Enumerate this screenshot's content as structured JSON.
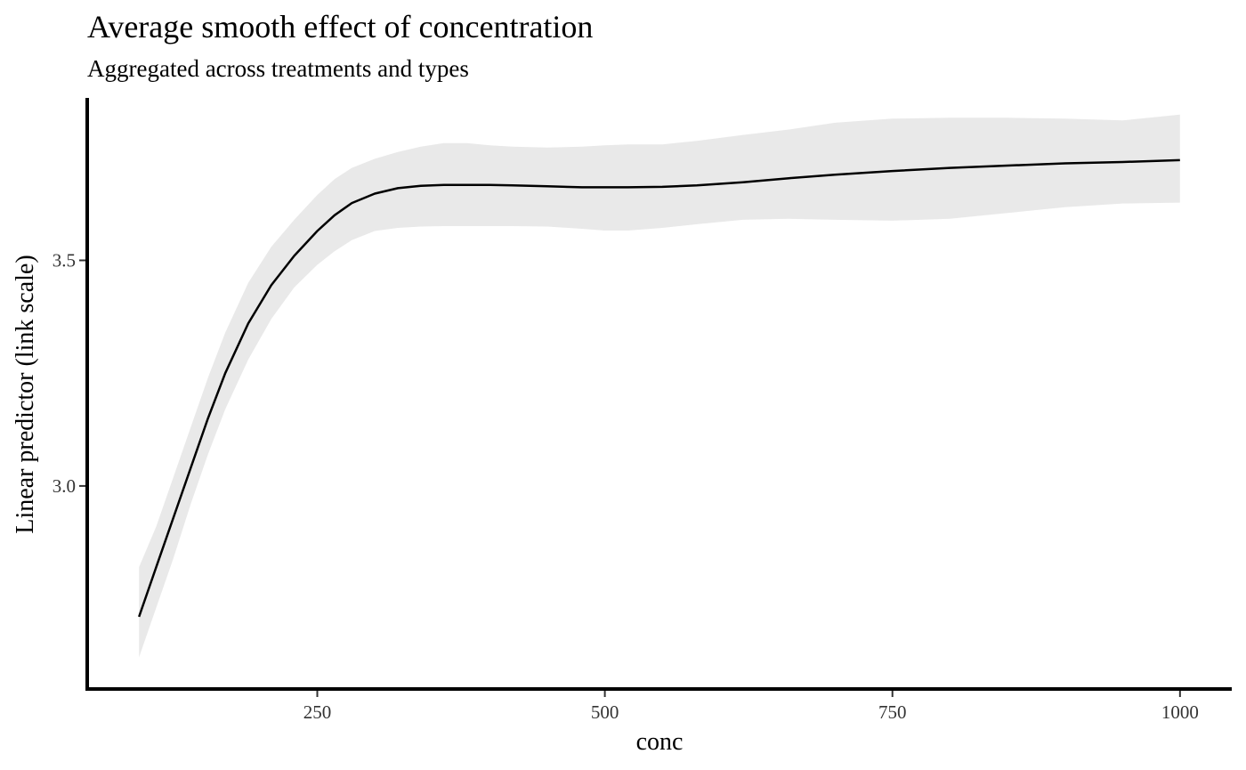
{
  "chart_data": {
    "type": "line",
    "title": "Average smooth effect of concentration",
    "subtitle": "Aggregated across treatments and types",
    "xlabel": "conc",
    "ylabel": "Linear predictor (link scale)",
    "xlim": [
      50,
      1045
    ],
    "ylim": [
      2.55,
      3.86
    ],
    "x_ticks": [
      250,
      500,
      750,
      1000
    ],
    "x_tick_labels": [
      "250",
      "500",
      "750",
      "1000"
    ],
    "y_ticks": [
      3.0,
      3.5
    ],
    "y_tick_labels": [
      "3.0",
      "3.5"
    ],
    "grid": false,
    "legend": "none",
    "colors": {
      "line": "#000000",
      "ribbon": "#e9e9e9",
      "axis": "#000000"
    },
    "series": [
      {
        "x": [
          95,
          110,
          125,
          140,
          155,
          170,
          190,
          210,
          230,
          250,
          265,
          280,
          300,
          320,
          340,
          360,
          380,
          400,
          420,
          450,
          480,
          500,
          520,
          550,
          580,
          620,
          660,
          700,
          750,
          800,
          850,
          900,
          950,
          1000
        ],
        "y": [
          2.71,
          2.82,
          2.93,
          3.04,
          3.15,
          3.25,
          3.36,
          3.445,
          3.51,
          3.565,
          3.6,
          3.627,
          3.648,
          3.66,
          3.665,
          3.667,
          3.667,
          3.667,
          3.666,
          3.664,
          3.662,
          3.662,
          3.662,
          3.663,
          3.666,
          3.673,
          3.682,
          3.69,
          3.698,
          3.705,
          3.71,
          3.715,
          3.718,
          3.722
        ],
        "lower": [
          2.62,
          2.73,
          2.84,
          2.96,
          3.07,
          3.17,
          3.28,
          3.37,
          3.44,
          3.49,
          3.52,
          3.545,
          3.565,
          3.572,
          3.575,
          3.576,
          3.576,
          3.576,
          3.576,
          3.575,
          3.57,
          3.566,
          3.566,
          3.572,
          3.58,
          3.59,
          3.592,
          3.59,
          3.588,
          3.592,
          3.605,
          3.618,
          3.626,
          3.628
        ],
        "upper": [
          2.82,
          2.91,
          3.02,
          3.13,
          3.24,
          3.34,
          3.45,
          3.53,
          3.59,
          3.645,
          3.68,
          3.705,
          3.725,
          3.74,
          3.752,
          3.76,
          3.76,
          3.755,
          3.752,
          3.75,
          3.752,
          3.755,
          3.757,
          3.757,
          3.765,
          3.778,
          3.79,
          3.805,
          3.814,
          3.816,
          3.816,
          3.814,
          3.81,
          3.823
        ]
      }
    ]
  }
}
